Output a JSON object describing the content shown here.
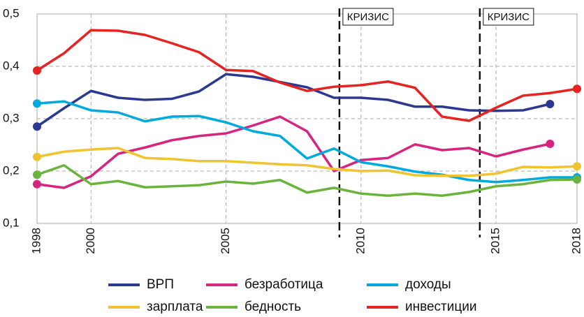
{
  "chart_data": {
    "type": "line",
    "x": [
      1998,
      1999,
      2000,
      2001,
      2002,
      2003,
      2004,
      2005,
      2006,
      2007,
      2008,
      2009,
      2010,
      2011,
      2012,
      2013,
      2014,
      2015,
      2016,
      2017,
      2018
    ],
    "xlim": [
      1998,
      2018
    ],
    "xticks": [
      1998,
      2000,
      2005,
      2010,
      2015,
      2018
    ],
    "ylim": [
      0.1,
      0.5
    ],
    "yticks": [
      {
        "value": 0.1,
        "label": "0,1"
      },
      {
        "value": 0.2,
        "label": "0,2"
      },
      {
        "value": 0.3,
        "label": "0,3"
      },
      {
        "value": 0.4,
        "label": "0,4"
      },
      {
        "value": 0.5,
        "label": "0,5"
      }
    ],
    "grid": true,
    "crisis_lines": [
      {
        "x": 2009.2,
        "label": "КРИЗИС"
      },
      {
        "x": 2014.4,
        "label": "КРИЗИС"
      }
    ],
    "series": [
      {
        "name": "ВРП",
        "color": "#2b3990",
        "values": [
          0.285,
          0.32,
          0.353,
          0.34,
          0.336,
          0.338,
          0.352,
          0.385,
          0.38,
          0.37,
          0.36,
          0.34,
          0.34,
          0.336,
          0.323,
          0.323,
          0.316,
          0.315,
          0.316,
          0.328,
          null
        ]
      },
      {
        "name": "безработица",
        "color": "#d6247f",
        "values": [
          0.175,
          0.168,
          0.19,
          0.233,
          0.245,
          0.259,
          0.267,
          0.272,
          0.287,
          0.304,
          0.276,
          0.2,
          0.221,
          0.225,
          0.251,
          0.24,
          0.244,
          0.228,
          0.241,
          0.252,
          null
        ]
      },
      {
        "name": "доходы",
        "color": "#00aadc",
        "values": [
          0.329,
          0.333,
          0.316,
          0.312,
          0.295,
          0.304,
          0.305,
          0.293,
          0.276,
          0.267,
          0.224,
          0.243,
          0.217,
          0.209,
          0.199,
          0.193,
          0.183,
          0.179,
          0.183,
          0.188,
          0.188
        ]
      },
      {
        "name": "зарплата",
        "color": "#f0c330",
        "values": [
          0.227,
          0.237,
          0.241,
          0.244,
          0.225,
          0.223,
          0.219,
          0.219,
          0.216,
          0.213,
          0.211,
          0.204,
          0.2,
          0.201,
          0.192,
          0.191,
          0.191,
          0.195,
          0.208,
          0.207,
          0.209
        ]
      },
      {
        "name": "бедность",
        "color": "#6ab43e",
        "values": [
          0.193,
          0.211,
          0.175,
          0.181,
          0.169,
          0.171,
          0.173,
          0.18,
          0.176,
          0.183,
          0.159,
          0.168,
          0.157,
          0.153,
          0.157,
          0.153,
          0.16,
          0.171,
          0.175,
          0.183,
          0.184
        ]
      },
      {
        "name": "инвестиции",
        "color": "#e52421",
        "values": [
          0.392,
          0.425,
          0.469,
          0.468,
          0.46,
          0.444,
          0.427,
          0.393,
          0.391,
          0.369,
          0.353,
          0.361,
          0.364,
          0.371,
          0.359,
          0.304,
          0.296,
          0.321,
          0.344,
          0.349,
          0.357
        ]
      }
    ]
  }
}
